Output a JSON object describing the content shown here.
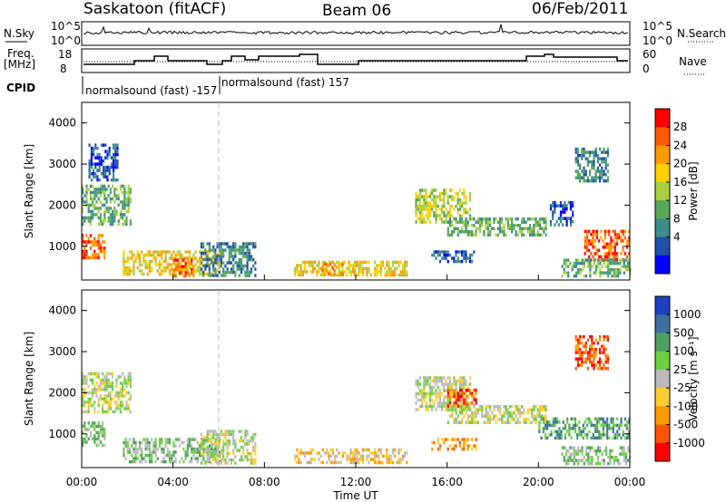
{
  "header": {
    "station": "Saskatoon (fitACF)",
    "beam": "Beam 06",
    "date": "06/Feb/2011"
  },
  "status_panels": {
    "nsky_label": "N.Sky",
    "nsearch_label": "N.Search",
    "freq_label_1": "Freq.",
    "freq_label_2": "[MHz]",
    "nave_label": "Nave",
    "cpid_label": "CPID",
    "noise_ticks_left": [
      "10^5",
      "10^0"
    ],
    "noise_ticks_right": [
      "10^5",
      "10^0"
    ],
    "freq_ticks": [
      "18",
      "8"
    ],
    "nave_ticks": [
      "60",
      "0"
    ],
    "cpid_segments": [
      {
        "label": "normalsound (fast) -157",
        "start_hour": 0.0,
        "end_hour": 6.0
      },
      {
        "label": "normalsound (fast) 157",
        "start_hour": 6.0,
        "end_hour": 24.0
      }
    ]
  },
  "chart_data": [
    {
      "type": "heatmap",
      "name": "power",
      "ylabel": "Slant Range [km]",
      "xlabel": "Time UT",
      "xlim": [
        0,
        24
      ],
      "ylim": [
        180,
        4500
      ],
      "y_ticks": [
        1000,
        2000,
        3000,
        4000
      ],
      "x_ticks": [
        "00:00",
        "04:00",
        "08:00",
        "12:00",
        "16:00",
        "20:00",
        "00:00"
      ],
      "colorbar": {
        "label": "Power [dB]",
        "ticks": [
          "28",
          "24",
          "20",
          "16",
          "12",
          "8",
          "4"
        ],
        "colors": [
          "#ff0000",
          "#ff5a00",
          "#ff9a00",
          "#ffd000",
          "#a8d040",
          "#58a858",
          "#3c8c8c",
          "#2050a8",
          "#0000ff"
        ]
      },
      "echo_regions": [
        {
          "t0": 0.0,
          "t1": 2.1,
          "r0": 1500,
          "r1": 2500,
          "level": 5
        },
        {
          "t0": 0.0,
          "t1": 1.0,
          "r0": 700,
          "r1": 1300,
          "level": 1
        },
        {
          "t0": 0.3,
          "t1": 1.6,
          "r0": 2600,
          "r1": 3500,
          "level": 7
        },
        {
          "t0": 1.8,
          "t1": 6.0,
          "r0": 300,
          "r1": 900,
          "level": 3
        },
        {
          "t0": 3.9,
          "t1": 4.9,
          "r0": 300,
          "r1": 700,
          "level": 1
        },
        {
          "t0": 5.2,
          "t1": 7.6,
          "r0": 300,
          "r1": 1100,
          "level": 6
        },
        {
          "t0": 9.3,
          "t1": 14.2,
          "r0": 300,
          "r1": 650,
          "level": 3
        },
        {
          "t0": 10.5,
          "t1": 11.4,
          "r0": 350,
          "r1": 600,
          "level": 2
        },
        {
          "t0": 14.6,
          "t1": 17.0,
          "r0": 1600,
          "r1": 2400,
          "level": 4
        },
        {
          "t0": 16.0,
          "t1": 20.3,
          "r0": 1250,
          "r1": 1700,
          "level": 5
        },
        {
          "t0": 15.3,
          "t1": 17.3,
          "r0": 600,
          "r1": 900,
          "level": 7
        },
        {
          "t0": 20.5,
          "t1": 21.5,
          "r0": 1500,
          "r1": 2100,
          "level": 7
        },
        {
          "t0": 22.0,
          "t1": 24.0,
          "r0": 700,
          "r1": 1400,
          "level": 1
        },
        {
          "t0": 21.6,
          "t1": 23.0,
          "r0": 2600,
          "r1": 3400,
          "level": 6
        },
        {
          "t0": 21.0,
          "t1": 24.0,
          "r0": 300,
          "r1": 700,
          "level": 5
        }
      ]
    },
    {
      "type": "heatmap",
      "name": "velocity",
      "ylabel": "Slant Range [km]",
      "xlabel": "Time UT",
      "xlim": [
        0,
        24
      ],
      "ylim": [
        180,
        4500
      ],
      "y_ticks": [
        1000,
        2000,
        3000,
        4000
      ],
      "x_ticks": [
        "00:00",
        "04:00",
        "08:00",
        "12:00",
        "16:00",
        "20:00",
        "00:00"
      ],
      "colorbar": {
        "label": "Velocity [m s⁻¹]",
        "ticks": [
          "1000",
          "500",
          "100",
          "25",
          "-25",
          "-100",
          "-500",
          "-1000"
        ],
        "colors": [
          "#2040c0",
          "#3f6fa0",
          "#4fa060",
          "#6cd040",
          "#bbbbbb",
          "#ffcc33",
          "#ff9900",
          "#ff5500",
          "#ff0000"
        ]
      },
      "echo_regions": [
        {
          "t0": 0.0,
          "t1": 2.1,
          "r0": 1500,
          "r1": 2500,
          "level": 4
        },
        {
          "t0": 0.0,
          "t1": 1.0,
          "r0": 700,
          "r1": 1300,
          "level": 3
        },
        {
          "t0": 1.8,
          "t1": 6.0,
          "r0": 300,
          "r1": 900,
          "level": 3
        },
        {
          "t0": 5.2,
          "t1": 7.6,
          "r0": 300,
          "r1": 1100,
          "level": 4
        },
        {
          "t0": 9.3,
          "t1": 14.2,
          "r0": 300,
          "r1": 650,
          "level": 5
        },
        {
          "t0": 14.6,
          "t1": 17.0,
          "r0": 1600,
          "r1": 2400,
          "level": 4
        },
        {
          "t0": 16.0,
          "t1": 17.3,
          "r0": 1700,
          "r1": 2100,
          "level": 7
        },
        {
          "t0": 16.0,
          "t1": 20.3,
          "r0": 1250,
          "r1": 1700,
          "level": 4
        },
        {
          "t0": 15.3,
          "t1": 17.3,
          "r0": 600,
          "r1": 900,
          "level": 6
        },
        {
          "t0": 20.0,
          "t1": 24.0,
          "r0": 900,
          "r1": 1400,
          "level": 2
        },
        {
          "t0": 21.6,
          "t1": 23.0,
          "r0": 2600,
          "r1": 3400,
          "level": 7
        },
        {
          "t0": 21.0,
          "t1": 24.0,
          "r0": 300,
          "r1": 700,
          "level": 3
        }
      ]
    }
  ]
}
